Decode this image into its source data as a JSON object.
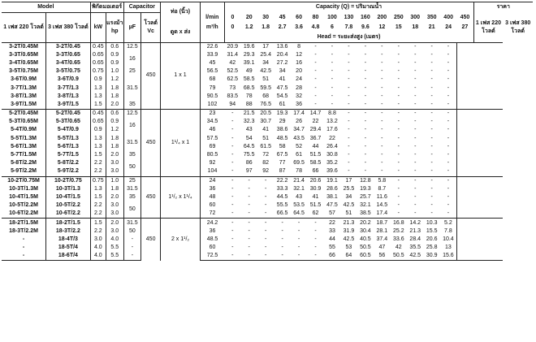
{
  "header": {
    "model": "Model",
    "motor": "พิกัดมอเตอร์",
    "capacitor": "Capacitor",
    "pipe": "ท่อ (นิ้ว)",
    "lmin": "l/min",
    "capacity": "Capacity (Q) = ปริมาณน้ำ",
    "price": "ราคา",
    "phase1": "1 เฟส 220 โวลต์",
    "phase3": "3 เฟส 380 โวลต์",
    "kw": "kW",
    "hp": "แรงม้า hp",
    "uf": "µF",
    "volt": "โวลต์ Vc",
    "pipe_io": "ดูด x ส่ง",
    "m3h": "m³/h",
    "head": "Head = ระยะส่งสูง (เมตร)",
    "price1": "1 เฟส 220 โวลต์",
    "price3": "3 เฟส 380 โวลต์",
    "lmin_values": [
      "0",
      "20",
      "30",
      "45",
      "60",
      "80",
      "100",
      "130",
      "160",
      "200",
      "250",
      "300",
      "350",
      "400",
      "450"
    ],
    "m3h_values": [
      "0",
      "1.2",
      "1.8",
      "2.7",
      "3.6",
      "4.8",
      "6",
      "7.8",
      "9.6",
      "12",
      "15",
      "18",
      "21",
      "24",
      "27"
    ]
  },
  "groups": [
    {
      "volt": "450",
      "pipe": "1 x 1",
      "rows": [
        {
          "m1": "3-2T/0.45M",
          "m3": "3-2T/0.45",
          "kw": "0.45",
          "hp": "0.6",
          "uf": "12.5",
          "heads": [
            "22.6",
            "20.9",
            "19.6",
            "17",
            "13.6",
            "8",
            "-",
            "-",
            "-",
            "-",
            "-",
            "-",
            "-",
            "-",
            "-"
          ]
        },
        {
          "m1": "3-3T/0.65M",
          "m3": "3-3T/0.65",
          "kw": "0.65",
          "hp": "0.9",
          "uf": "16",
          "heads": [
            "33.9",
            "31.4",
            "29.3",
            "25.4",
            "20.4",
            "12",
            "-",
            "-",
            "-",
            "-",
            "-",
            "-",
            "-",
            "-",
            "-"
          ]
        },
        {
          "m1": "3-4T/0.65M",
          "m3": "3-4T/0.65",
          "kw": "0.65",
          "hp": "0.9",
          "uf": "",
          "heads": [
            "45",
            "42",
            "39.1",
            "34",
            "27.2",
            "16",
            "-",
            "-",
            "-",
            "-",
            "-",
            "-",
            "-",
            "-",
            "-"
          ]
        },
        {
          "m1": "3-5T/0.75M",
          "m3": "3-5T/0.75",
          "kw": "0.75",
          "hp": "1.0",
          "uf": "25",
          "heads": [
            "56.5",
            "52.5",
            "49",
            "42.5",
            "34",
            "20",
            "-",
            "-",
            "-",
            "-",
            "-",
            "-",
            "-",
            "-",
            "-"
          ]
        },
        {
          "m1": "3-6T/0.9M",
          "m3": "3-6T/0.9",
          "kw": "0.9",
          "hp": "1.2",
          "uf": "31.5",
          "heads": [
            "68",
            "62.5",
            "58.5",
            "51",
            "41",
            "24",
            "-",
            "-",
            "-",
            "-",
            "-",
            "-",
            "-",
            "-",
            "-"
          ]
        },
        {
          "m1": "3-7T/1.3M",
          "m3": "3-7T/1.3",
          "kw": "1.3",
          "hp": "1.8",
          "uf": "",
          "heads": [
            "79",
            "73",
            "68.5",
            "59.5",
            "47.5",
            "28",
            "-",
            "-",
            "-",
            "-",
            "-",
            "-",
            "-",
            "-",
            "-"
          ]
        },
        {
          "m1": "3-8T/1.3M",
          "m3": "3-8T/1.3",
          "kw": "1.3",
          "hp": "1.8",
          "uf": "",
          "heads": [
            "90.5",
            "83.5",
            "78",
            "68",
            "54.5",
            "32",
            "-",
            "-",
            "-",
            "-",
            "-",
            "-",
            "-",
            "-",
            "-"
          ]
        },
        {
          "m1": "3-9T/1.5M",
          "m3": "3-9T/1.5",
          "kw": "1.5",
          "hp": "2.0",
          "uf": "35",
          "heads": [
            "102",
            "94",
            "88",
            "76.5",
            "61",
            "36",
            "-",
            "-",
            "-",
            "-",
            "-",
            "-",
            "-",
            "-",
            "-"
          ]
        }
      ]
    },
    {
      "volt": "450",
      "pipe": "1¹/₄ x 1",
      "rows": [
        {
          "m1": "5-2T/0.45M",
          "m3": "5-2T/0.45",
          "kw": "0.45",
          "hp": "0.6",
          "uf": "12.5",
          "heads": [
            "23",
            "-",
            "21.5",
            "20.5",
            "19.3",
            "17.4",
            "14.7",
            "8.8",
            "-",
            "-",
            "-",
            "-",
            "-",
            "-",
            "-"
          ]
        },
        {
          "m1": "5-3T/0.65M",
          "m3": "5-3T/0.65",
          "kw": "0.65",
          "hp": "0.9",
          "uf": "16",
          "heads": [
            "34.5",
            "-",
            "32.3",
            "30.7",
            "29",
            "26",
            "22",
            "13.2",
            "-",
            "-",
            "-",
            "-",
            "-",
            "-",
            "-"
          ]
        },
        {
          "m1": "5-4T/0.9M",
          "m3": "5-4T/0.9",
          "kw": "0.9",
          "hp": "1.2",
          "uf": "",
          "heads": [
            "46",
            "-",
            "43",
            "41",
            "38.6",
            "34.7",
            "29.4",
            "17.6",
            "-",
            "-",
            "-",
            "-",
            "-",
            "-",
            "-"
          ]
        },
        {
          "m1": "5-5T/1.3M",
          "m3": "5-5T/1.3",
          "kw": "1.3",
          "hp": "1.8",
          "uf": "31.5",
          "heads": [
            "57.5",
            "-",
            "54",
            "51",
            "48.5",
            "43.5",
            "36.7",
            "22",
            "-",
            "-",
            "-",
            "-",
            "-",
            "-",
            "-"
          ]
        },
        {
          "m1": "5-6T/1.3M",
          "m3": "5-6T/1.3",
          "kw": "1.3",
          "hp": "1.8",
          "uf": "",
          "heads": [
            "69",
            "-",
            "64.5",
            "61.5",
            "58",
            "52",
            "44",
            "26.4",
            "-",
            "-",
            "-",
            "-",
            "-",
            "-",
            "-"
          ]
        },
        {
          "m1": "5-7T/1.5M",
          "m3": "5-7T/1.5",
          "kw": "1.5",
          "hp": "2.0",
          "uf": "35",
          "heads": [
            "80.5",
            "-",
            "75.5",
            "72",
            "67.5",
            "61",
            "51.5",
            "30.8",
            "-",
            "-",
            "-",
            "-",
            "-",
            "-",
            "-"
          ]
        },
        {
          "m1": "5-8T/2.2M",
          "m3": "5-8T/2.2",
          "kw": "2.2",
          "hp": "3.0",
          "uf": "50",
          "heads": [
            "92",
            "-",
            "86",
            "82",
            "77",
            "69.5",
            "58.5",
            "35.2",
            "-",
            "-",
            "-",
            "-",
            "-",
            "-",
            "-"
          ]
        },
        {
          "m1": "5-9T/2.2M",
          "m3": "5-9T/2.2",
          "kw": "2.2",
          "hp": "3.0",
          "uf": "",
          "heads": [
            "104",
            "-",
            "97",
            "92",
            "87",
            "78",
            "66",
            "39.6",
            "-",
            "-",
            "-",
            "-",
            "-",
            "-",
            "-"
          ]
        }
      ]
    },
    {
      "volt": "450",
      "pipe": "1¹/₂ x 1¹/₄",
      "rows": [
        {
          "m1": "10-2T/0.75M",
          "m3": "10-2T/0.75",
          "kw": "0.75",
          "hp": "1.0",
          "uf": "25",
          "heads": [
            "24",
            "-",
            "-",
            "-",
            "22.2",
            "21.4",
            "20.6",
            "19.1",
            "17",
            "12.8",
            "5.8",
            "-",
            "-",
            "-",
            "-"
          ]
        },
        {
          "m1": "10-3T/1.3M",
          "m3": "10-3T/1.3",
          "kw": "1.3",
          "hp": "1.8",
          "uf": "31.5",
          "heads": [
            "36",
            "-",
            "-",
            "-",
            "33.3",
            "32.1",
            "30.9",
            "28.6",
            "25.5",
            "19.3",
            "8.7",
            "-",
            "-",
            "-",
            "-"
          ]
        },
        {
          "m1": "10-4T/1.5M",
          "m3": "10-4T/1.5",
          "kw": "1.5",
          "hp": "2.0",
          "uf": "35",
          "heads": [
            "48",
            "-",
            "-",
            "-",
            "44.5",
            "43",
            "41",
            "38.1",
            "34",
            "25.7",
            "11.6",
            "-",
            "-",
            "-",
            "-"
          ]
        },
        {
          "m1": "10-5T/2.2M",
          "m3": "10-5T/2.2",
          "kw": "2.2",
          "hp": "3.0",
          "uf": "50",
          "heads": [
            "60",
            "-",
            "-",
            "-",
            "55.5",
            "53.5",
            "51.5",
            "47.5",
            "42.5",
            "32.1",
            "14.5",
            "-",
            "-",
            "-",
            "-"
          ]
        },
        {
          "m1": "10-6T/2.2M",
          "m3": "10-6T/2.2",
          "kw": "2.2",
          "hp": "3.0",
          "uf": "",
          "heads": [
            "72",
            "-",
            "-",
            "-",
            "66.5",
            "64.5",
            "62",
            "57",
            "51",
            "38.5",
            "17.4",
            "-",
            "-",
            "-",
            "-"
          ]
        }
      ]
    },
    {
      "volt": "450",
      "pipe": "2 x 1¹/₂",
      "rows": [
        {
          "m1": "18-2T/1.5M",
          "m3": "18-2T/1.5",
          "kw": "1.5",
          "hp": "2.0",
          "uf": "31.5",
          "heads": [
            "24.2",
            "-",
            "-",
            "-",
            "-",
            "-",
            "-",
            "22",
            "21.3",
            "20.2",
            "18.7",
            "16.8",
            "14.2",
            "10.3",
            "5.2"
          ]
        },
        {
          "m1": "18-3T/2.2M",
          "m3": "18-3T/2.2",
          "kw": "2.2",
          "hp": "3.0",
          "uf": "50",
          "heads": [
            "36",
            "-",
            "-",
            "-",
            "-",
            "-",
            "-",
            "33",
            "31.9",
            "30.4",
            "28.1",
            "25.2",
            "21.3",
            "15.5",
            "7.8"
          ]
        },
        {
          "m1": "-",
          "m3": "18-4T/3",
          "kw": "3.0",
          "hp": "4.0",
          "uf": "-",
          "heads": [
            "48.5",
            "-",
            "-",
            "-",
            "-",
            "-",
            "-",
            "44",
            "42.5",
            "40.5",
            "37.4",
            "33.6",
            "28.4",
            "20.6",
            "10.4"
          ]
        },
        {
          "m1": "-",
          "m3": "18-5T/4",
          "kw": "4.0",
          "hp": "5.5",
          "uf": "-",
          "heads": [
            "60",
            "-",
            "-",
            "-",
            "-",
            "-",
            "-",
            "55",
            "53",
            "50.5",
            "47",
            "42",
            "35.5",
            "25.8",
            "13"
          ]
        },
        {
          "m1": "-",
          "m3": "18-6T/4",
          "kw": "4.0",
          "hp": "5.5",
          "uf": "-",
          "heads": [
            "72.5",
            "-",
            "-",
            "-",
            "-",
            "-",
            "-",
            "66",
            "64",
            "60.5",
            "56",
            "50.5",
            "42.5",
            "30.9",
            "15.6"
          ]
        }
      ]
    }
  ]
}
